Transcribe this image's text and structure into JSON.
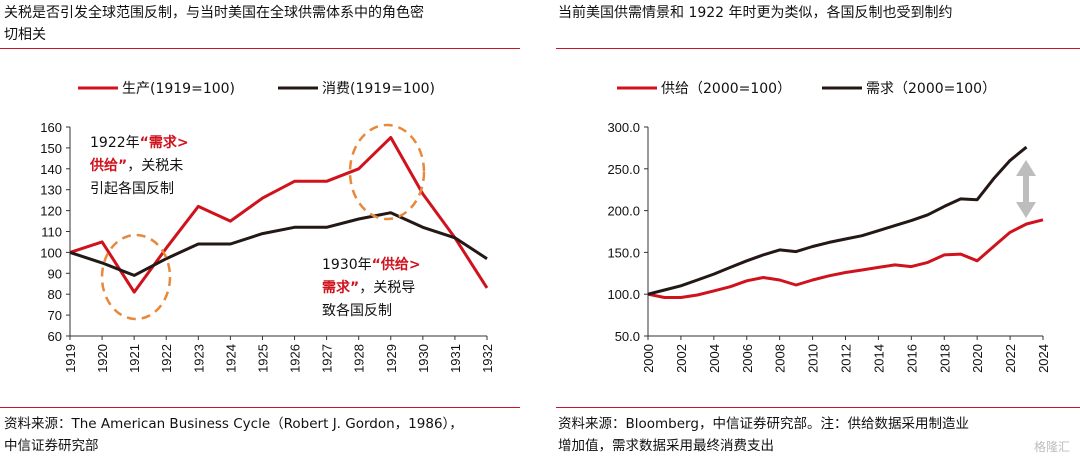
{
  "left_panel": {
    "title_line1": "关税是否引发全球范围反制，与当时美国在全球供需体系中的角色密",
    "title_line2": "切相关",
    "source_line1": "资料来源：The American Business Cycle（Robert J. Gordon，1986），",
    "source_line2": "中信证券研究部",
    "annotation1": {
      "line1_prefix": "1922年",
      "line1_red": "“需求>",
      "line2_red": "供给”",
      "line2_rest": "，关税未",
      "line3": "引起各国反制"
    },
    "annotation2": {
      "line1_prefix": "1930年",
      "line1_red": "“供给>",
      "line2_red": "需求”",
      "line2_rest": "，关税导",
      "line3": "致各国反制"
    }
  },
  "right_panel": {
    "title": "当前美国供需情景和 1922 年时更为类似，各国反制也受到制约",
    "source_line1": "资料来源：Bloomberg，中信证券研究部。注：供给数据采用制造业",
    "source_line2": "增加值，需求数据采用最终消费支出"
  },
  "watermark": "格隆汇",
  "colors": {
    "red": "#d0121d",
    "black": "#231815",
    "orange": "#e8883a",
    "rule": "#c7162b",
    "arrow": "#bdbdbd"
  },
  "chart_data": [
    {
      "type": "line",
      "categories": [
        "1919",
        "1920",
        "1921",
        "1922",
        "1923",
        "1924",
        "1925",
        "1926",
        "1927",
        "1928",
        "1929",
        "1930",
        "1931",
        "1932"
      ],
      "series": [
        {
          "name": "生产(1919=100)",
          "color": "#d0121d",
          "values": [
            100,
            105,
            81,
            102,
            122,
            115,
            126,
            134,
            134,
            140,
            155,
            128,
            107,
            83
          ]
        },
        {
          "name": "消费(1919=100)",
          "color": "#231815",
          "values": [
            100,
            95,
            89,
            97,
            104,
            104,
            109,
            112,
            112,
            116,
            119,
            112,
            107,
            97
          ]
        }
      ],
      "ylim": [
        60,
        160
      ],
      "yticks": [
        "60",
        "70",
        "80",
        "90",
        "100",
        "110",
        "120",
        "130",
        "140",
        "150",
        "160"
      ],
      "legend": "top"
    },
    {
      "type": "line",
      "x_ticks": [
        "2000",
        "2002",
        "2004",
        "2006",
        "2008",
        "2010",
        "2012",
        "2014",
        "2016",
        "2018",
        "2020",
        "2022",
        "2024"
      ],
      "x": [
        2000,
        2001,
        2002,
        2003,
        2004,
        2005,
        2006,
        2007,
        2008,
        2009,
        2010,
        2011,
        2012,
        2013,
        2014,
        2015,
        2016,
        2017,
        2018,
        2019,
        2020,
        2021,
        2022,
        2023,
        2024
      ],
      "series": [
        {
          "name": "供给（2000=100）",
          "color": "#d0121d",
          "values": [
            100,
            96,
            96,
            99,
            104,
            109,
            116,
            120,
            117,
            111,
            117,
            122,
            126,
            129,
            132,
            135,
            133,
            138,
            147,
            148,
            140,
            157,
            174,
            184,
            189
          ]
        },
        {
          "name": "需求（2000=100）",
          "color": "#231815",
          "values": [
            100,
            105,
            110,
            117,
            124,
            132,
            140,
            147,
            153,
            151,
            157,
            162,
            166,
            170,
            176,
            182,
            188,
            195,
            205,
            214,
            213,
            238,
            260,
            276,
            null
          ]
        }
      ],
      "ylim": [
        50,
        300
      ],
      "yticks": [
        "50.0",
        "100.0",
        "150.0",
        "200.0",
        "250.0",
        "300.0"
      ],
      "legend": "top"
    }
  ]
}
